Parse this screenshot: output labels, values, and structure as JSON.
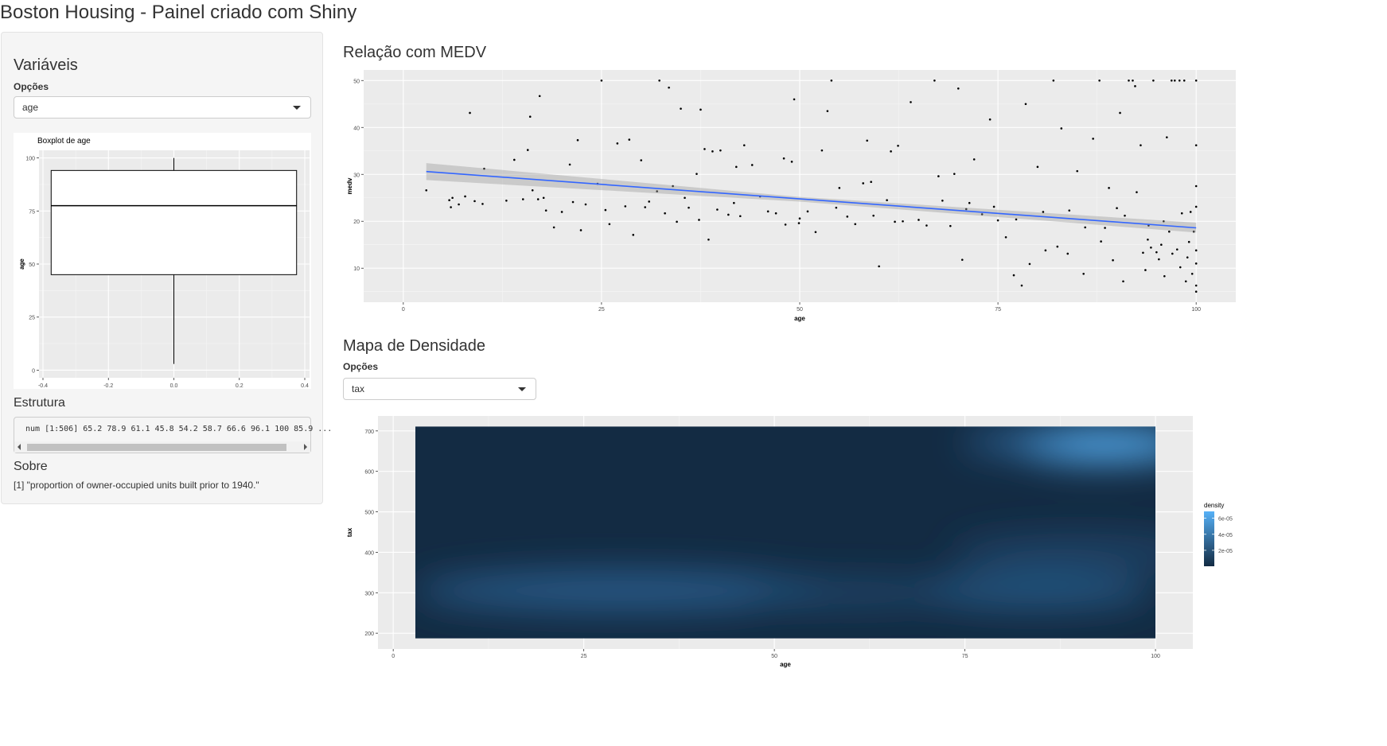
{
  "app": {
    "title": "Boston Housing - Painel criado com Shiny"
  },
  "sidebar": {
    "heading": "Variáveis",
    "select_label": "Opções",
    "select_value": "age",
    "boxplot": {
      "title": "Boxplot de  age",
      "ylabel": "age",
      "x_ticks": [
        "-0.4",
        "-0.2",
        "0.0",
        "0.2",
        "0.4"
      ],
      "y_ticks": [
        "0",
        "25",
        "50",
        "75",
        "100"
      ]
    },
    "structure_heading": "Estrutura",
    "structure_text": "num [1:506] 65.2 78.9 61.1 45.8 54.2 58.7 66.6 96.1 100 85.9 ...",
    "about_heading": "Sobre",
    "about_text": "[1] \"proportion of owner-occupied units built prior to 1940.\""
  },
  "main": {
    "scatter_heading": "Relação com MEDV",
    "scatter": {
      "xlabel": "age",
      "ylabel": "medv",
      "x_ticks": [
        "0",
        "25",
        "50",
        "75",
        "100"
      ],
      "y_ticks": [
        "10",
        "20",
        "30",
        "40",
        "50"
      ]
    },
    "density_heading": "Mapa de Densidade",
    "density_select_label": "Opções",
    "density_select_value": "tax",
    "density": {
      "xlabel": "age",
      "ylabel": "tax",
      "x_ticks": [
        "0",
        "25",
        "50",
        "75",
        "100"
      ],
      "y_ticks": [
        "200",
        "300",
        "400",
        "500",
        "600",
        "700"
      ],
      "legend_title": "density",
      "legend_labels": [
        "6e-05",
        "4e-05",
        "2e-05"
      ]
    }
  },
  "colors": {
    "panel_bg": "#ebebeb",
    "grid": "#ffffff",
    "smooth_line": "#3366ff",
    "density_low": "#132b43",
    "density_high": "#56b1f7"
  },
  "chart_data": [
    {
      "type": "boxplot",
      "title": "Boxplot de  age",
      "ylabel": "age",
      "xlim": [
        -0.4,
        0.4
      ],
      "ylim": [
        0,
        100
      ],
      "stats": {
        "min": 2.9,
        "q1": 45.0,
        "median": 77.5,
        "q3": 94.1,
        "max": 100.0
      }
    },
    {
      "type": "scatter",
      "xlabel": "age",
      "ylabel": "medv",
      "xlim": [
        0,
        100
      ],
      "ylim": [
        5,
        50
      ],
      "smooth": {
        "method": "lm",
        "x": [
          2.9,
          100
        ],
        "y": [
          30.6,
          18.6
        ],
        "se_band": [
          [
            2.9,
            28.8,
            32.4
          ],
          [
            50,
            24.2,
            25.2
          ],
          [
            100,
            17.6,
            19.7
          ]
        ]
      },
      "points": [
        [
          2.9,
          26.6
        ],
        [
          5.8,
          24.5
        ],
        [
          6.0,
          23.0
        ],
        [
          6.2,
          25.0
        ],
        [
          7.0,
          23.6
        ],
        [
          7.8,
          25.3
        ],
        [
          8.4,
          43.1
        ],
        [
          9.0,
          24.3
        ],
        [
          10.0,
          23.7
        ],
        [
          10.2,
          31.2
        ],
        [
          13.0,
          24.4
        ],
        [
          14.0,
          33.1
        ],
        [
          15.1,
          24.7
        ],
        [
          15.7,
          35.2
        ],
        [
          16.0,
          42.3
        ],
        [
          16.3,
          26.6
        ],
        [
          17.0,
          24.7
        ],
        [
          17.2,
          46.7
        ],
        [
          17.7,
          25.0
        ],
        [
          18.0,
          22.3
        ],
        [
          19.0,
          18.7
        ],
        [
          20.0,
          22.0
        ],
        [
          21.0,
          32.1
        ],
        [
          21.4,
          24.1
        ],
        [
          22.0,
          37.3
        ],
        [
          22.4,
          18.1
        ],
        [
          23.0,
          23.6
        ],
        [
          24.5,
          28.0
        ],
        [
          25.0,
          50.0
        ],
        [
          25.5,
          22.4
        ],
        [
          26.0,
          19.4
        ],
        [
          27.0,
          36.6
        ],
        [
          28.0,
          23.2
        ],
        [
          28.5,
          37.4
        ],
        [
          29.0,
          17.1
        ],
        [
          30.0,
          33.0
        ],
        [
          30.5,
          23.0
        ],
        [
          31.0,
          24.2
        ],
        [
          32.0,
          26.4
        ],
        [
          32.3,
          50.0
        ],
        [
          33.0,
          21.7
        ],
        [
          33.5,
          48.5
        ],
        [
          34.0,
          27.5
        ],
        [
          34.5,
          19.9
        ],
        [
          35.0,
          44.0
        ],
        [
          35.5,
          25.0
        ],
        [
          36.0,
          22.9
        ],
        [
          37.0,
          30.1
        ],
        [
          37.3,
          20.3
        ],
        [
          37.5,
          43.8
        ],
        [
          38.0,
          35.4
        ],
        [
          38.5,
          16.1
        ],
        [
          39.0,
          34.9
        ],
        [
          39.6,
          22.5
        ],
        [
          40.0,
          35.1
        ],
        [
          41.0,
          21.4
        ],
        [
          41.7,
          23.9
        ],
        [
          42.0,
          31.6
        ],
        [
          42.5,
          21.1
        ],
        [
          43.0,
          36.2
        ],
        [
          44.0,
          32.0
        ],
        [
          45.0,
          25.3
        ],
        [
          46.0,
          22.1
        ],
        [
          47.0,
          21.7
        ],
        [
          48.0,
          33.4
        ],
        [
          48.2,
          19.3
        ],
        [
          49.0,
          32.7
        ],
        [
          49.3,
          46.0
        ],
        [
          49.9,
          19.6
        ],
        [
          50.0,
          20.6
        ],
        [
          51.0,
          22.1
        ],
        [
          52.0,
          17.7
        ],
        [
          52.8,
          35.1
        ],
        [
          53.5,
          43.5
        ],
        [
          54.0,
          50.0
        ],
        [
          54.6,
          22.9
        ],
        [
          55.0,
          27.1
        ],
        [
          56.0,
          21.0
        ],
        [
          57.0,
          19.4
        ],
        [
          58.0,
          28.1
        ],
        [
          58.5,
          37.2
        ],
        [
          59.0,
          28.4
        ],
        [
          59.3,
          21.2
        ],
        [
          60.0,
          10.4
        ],
        [
          61.0,
          24.5
        ],
        [
          61.5,
          34.9
        ],
        [
          62.0,
          19.9
        ],
        [
          62.4,
          36.1
        ],
        [
          63.0,
          20.0
        ],
        [
          64.0,
          45.4
        ],
        [
          65.0,
          20.3
        ],
        [
          66.0,
          19.1
        ],
        [
          67.0,
          50.0
        ],
        [
          67.5,
          29.6
        ],
        [
          68.0,
          24.4
        ],
        [
          69.0,
          19.0
        ],
        [
          69.5,
          30.1
        ],
        [
          70.0,
          48.3
        ],
        [
          70.5,
          11.8
        ],
        [
          71.0,
          22.6
        ],
        [
          71.4,
          23.9
        ],
        [
          72.0,
          33.2
        ],
        [
          73.0,
          21.5
        ],
        [
          74.0,
          41.7
        ],
        [
          74.5,
          23.1
        ],
        [
          75.0,
          20.2
        ],
        [
          76.0,
          16.6
        ],
        [
          77.0,
          8.5
        ],
        [
          77.3,
          20.4
        ],
        [
          78.0,
          6.3
        ],
        [
          78.5,
          45.0
        ],
        [
          79.0,
          10.9
        ],
        [
          80.0,
          31.6
        ],
        [
          80.7,
          22.0
        ],
        [
          81.0,
          13.8
        ],
        [
          82.0,
          50.0
        ],
        [
          82.5,
          14.6
        ],
        [
          83.0,
          39.8
        ],
        [
          83.8,
          13.1
        ],
        [
          84.0,
          22.3
        ],
        [
          85.0,
          30.7
        ],
        [
          85.8,
          8.8
        ],
        [
          86.0,
          18.7
        ],
        [
          87.0,
          37.6
        ],
        [
          87.8,
          50.0
        ],
        [
          88.0,
          15.7
        ],
        [
          88.5,
          18.6
        ],
        [
          89.0,
          27.1
        ],
        [
          89.5,
          11.7
        ],
        [
          90.0,
          22.8
        ],
        [
          90.4,
          43.1
        ],
        [
          90.8,
          7.2
        ],
        [
          91.0,
          21.2
        ],
        [
          91.5,
          50.0
        ],
        [
          92.0,
          50.0
        ],
        [
          92.3,
          48.8
        ],
        [
          92.5,
          26.2
        ],
        [
          93.0,
          36.2
        ],
        [
          93.3,
          13.3
        ],
        [
          93.6,
          9.6
        ],
        [
          93.9,
          16.1
        ],
        [
          94.0,
          19.1
        ],
        [
          94.3,
          14.4
        ],
        [
          94.6,
          50.0
        ],
        [
          95.0,
          13.4
        ],
        [
          95.3,
          11.9
        ],
        [
          95.6,
          15.0
        ],
        [
          95.9,
          20.0
        ],
        [
          96.0,
          8.3
        ],
        [
          96.3,
          37.9
        ],
        [
          96.6,
          17.8
        ],
        [
          96.9,
          50.0
        ],
        [
          97.0,
          13.1
        ],
        [
          97.3,
          50.0
        ],
        [
          97.6,
          14.0
        ],
        [
          97.9,
          50.0
        ],
        [
          98.0,
          10.2
        ],
        [
          98.2,
          21.7
        ],
        [
          98.5,
          50.0
        ],
        [
          98.7,
          7.2
        ],
        [
          98.9,
          12.3
        ],
        [
          99.1,
          15.6
        ],
        [
          99.3,
          22.0
        ],
        [
          99.5,
          8.8
        ],
        [
          99.7,
          17.8
        ],
        [
          100.0,
          50.0
        ],
        [
          100.0,
          36.2
        ],
        [
          100.0,
          13.8
        ],
        [
          100.0,
          11.0
        ],
        [
          100.0,
          5.0
        ],
        [
          100.0,
          6.3
        ],
        [
          100.0,
          23.1
        ],
        [
          100.0,
          27.5
        ]
      ]
    },
    {
      "type": "heatmap",
      "xlabel": "age",
      "ylabel": "tax",
      "xlim": [
        2.9,
        100
      ],
      "ylim": [
        187,
        711
      ],
      "legend_title": "density",
      "legend_breaks": [
        "2e-05",
        "4e-05",
        "6e-05"
      ],
      "density_peaks": [
        {
          "age": 93,
          "tax": 666,
          "density": 6.6e-05
        },
        {
          "age": 33,
          "tax": 300,
          "density": 3.5e-05
        },
        {
          "age": 86,
          "tax": 300,
          "density": 3e-05
        },
        {
          "age": 90,
          "tax": 400,
          "density": 2.5e-05
        }
      ]
    }
  ]
}
